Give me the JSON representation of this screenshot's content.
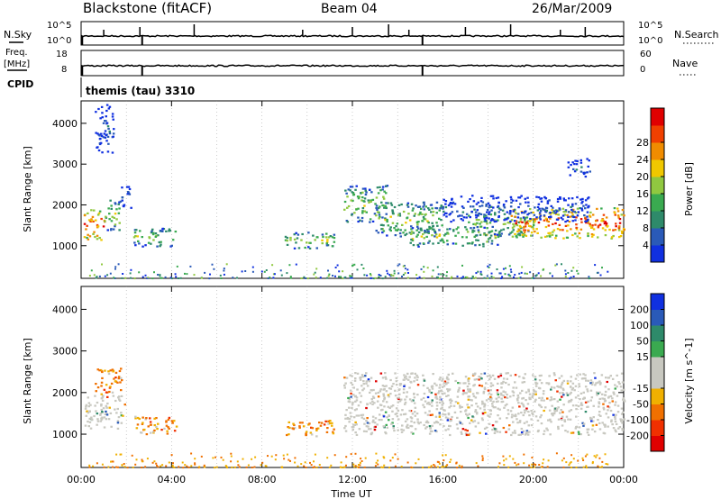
{
  "header": {
    "station": "Blackstone (fitACF)",
    "beam": "Beam 04",
    "date": "26/Mar/2009",
    "cpid_text": "themis (tau) 3310"
  },
  "colors": {
    "fg": "#000000",
    "grid": "#bbbbbb",
    "gs_gray": "#c8c8c0",
    "power_scale": [
      "#1030e0",
      "#2a5ab8",
      "#2e8a6a",
      "#3aaa50",
      "#90c840",
      "#f0c800",
      "#f08c00",
      "#f04000",
      "#e00000"
    ],
    "velocity_scale": [
      "#e00000",
      "#f03000",
      "#f07000",
      "#f0b000",
      "#c8c8c0",
      "#c8c8c0",
      "#3aaa50",
      "#2e8a6a",
      "#2a5ab8",
      "#1030e0"
    ]
  },
  "chart_data": [
    {
      "type": "line",
      "name": "noise-search-panel",
      "left_label": "N.Sky",
      "right_label": "N.Search",
      "left_ticks": [
        "10^5",
        "10^0"
      ],
      "right_ticks": [
        "10^5",
        "10^0"
      ],
      "x_range": [
        0,
        24
      ],
      "y_range": [
        0,
        5
      ],
      "series": [
        {
          "x": [
            0,
            2,
            4,
            6,
            8,
            10,
            12,
            14,
            16,
            18,
            20,
            22,
            24
          ],
          "y": [
            0.3,
            0.3,
            0.3,
            0.3,
            0.3,
            0.3,
            0.3,
            0.3,
            0.3,
            0.3,
            0.3,
            0.3,
            0.3
          ]
        }
      ],
      "spikes_x": [
        1.0,
        2.6,
        5.0,
        9.8,
        12.0,
        13.6,
        14.5,
        17.0,
        19.0,
        21.2,
        22.3
      ],
      "dips_x": [
        0.05,
        2.7,
        15.1
      ]
    },
    {
      "type": "line",
      "name": "frequency-nave-panel",
      "left_label": "Freq.",
      "left_units": "[MHz]",
      "right_label": "Nave",
      "left_ticks": [
        "18",
        "8"
      ],
      "right_ticks": [
        "60",
        "0"
      ],
      "x_range": [
        0,
        24
      ],
      "y_range": [
        8,
        18
      ],
      "series": [
        {
          "x": [
            0,
            2,
            4,
            6,
            8,
            10,
            12,
            14,
            16,
            18,
            20,
            22,
            24
          ],
          "y": [
            10.5,
            10.5,
            10.5,
            10.5,
            10.5,
            10.5,
            10.5,
            10.5,
            10.5,
            10.5,
            10.5,
            10.5,
            10.5
          ]
        }
      ],
      "dips_x": [
        0.05,
        2.7,
        15.1
      ],
      "cpid_label": "CPID"
    },
    {
      "type": "heatmap",
      "name": "power-panel",
      "ylabel": "Slant Range [km]",
      "y_range": [
        200,
        4550
      ],
      "y_ticks": [
        1000,
        2000,
        3000,
        4000
      ],
      "x_range": [
        0,
        24
      ],
      "colorbar_label": "Power [dB]",
      "colorbar_ticks": [
        "4",
        "8",
        "12",
        "16",
        "20",
        "24",
        "28"
      ],
      "regions": [
        {
          "t0": 0.1,
          "t1": 1.0,
          "r0": 1150,
          "r1": 1900,
          "level": "high"
        },
        {
          "t0": 1.0,
          "t1": 1.7,
          "r0": 1400,
          "r1": 2150,
          "level": "mid"
        },
        {
          "t0": 1.7,
          "t1": 2.2,
          "r0": 1900,
          "r1": 2500,
          "level": "low"
        },
        {
          "t0": 2.3,
          "t1": 4.2,
          "r0": 1000,
          "r1": 1450,
          "level": "mid"
        },
        {
          "t0": 9.0,
          "t1": 11.2,
          "r0": 950,
          "r1": 1350,
          "level": "mid"
        },
        {
          "t0": 11.6,
          "t1": 13.5,
          "r0": 1600,
          "r1": 2500,
          "level": "mid"
        },
        {
          "t0": 13.0,
          "t1": 16.0,
          "r0": 1250,
          "r1": 2100,
          "level": "mid"
        },
        {
          "t0": 14.5,
          "t1": 18.5,
          "r0": 1000,
          "r1": 1500,
          "level": "mid"
        },
        {
          "t0": 17.0,
          "t1": 20.0,
          "r0": 1250,
          "r1": 1850,
          "level": "mid"
        },
        {
          "t0": 19.0,
          "t1": 24.0,
          "r0": 1200,
          "r1": 1950,
          "level": "high"
        },
        {
          "t0": 16.0,
          "t1": 22.5,
          "r0": 1600,
          "r1": 2250,
          "level": "low"
        },
        {
          "t0": 0.6,
          "t1": 1.4,
          "r0": 3300,
          "r1": 4500,
          "level": "low"
        },
        {
          "t0": 21.5,
          "t1": 22.5,
          "r0": 2700,
          "r1": 3150,
          "level": "low"
        }
      ]
    },
    {
      "type": "heatmap",
      "name": "velocity-panel",
      "ylabel": "Slant Range [km]",
      "y_range": [
        200,
        4550
      ],
      "y_ticks": [
        1000,
        2000,
        3000,
        4000
      ],
      "x_range": [
        0,
        24
      ],
      "x_ticks": [
        "00:00",
        "04:00",
        "08:00",
        "12:00",
        "16:00",
        "20:00",
        "00:00"
      ],
      "xlabel": "Time UT",
      "colorbar_label": "Velocity [m s^-1]",
      "colorbar_ticks": [
        "-200",
        "-100",
        "-50",
        "-15",
        "15",
        "50",
        "100",
        "200"
      ],
      "regions": [
        {
          "t0": 0.1,
          "t1": 1.9,
          "r0": 1150,
          "r1": 1950,
          "level": "gs"
        },
        {
          "t0": 2.3,
          "t1": 4.2,
          "r0": 1000,
          "r1": 1450,
          "level": "neg"
        },
        {
          "t0": 9.0,
          "t1": 11.2,
          "r0": 950,
          "r1": 1350,
          "level": "neg"
        },
        {
          "t0": 11.6,
          "t1": 24.0,
          "r0": 1000,
          "r1": 2500,
          "level": "gs"
        },
        {
          "t0": 0.6,
          "t1": 1.8,
          "r0": 1900,
          "r1": 2600,
          "level": "neg"
        }
      ]
    }
  ]
}
